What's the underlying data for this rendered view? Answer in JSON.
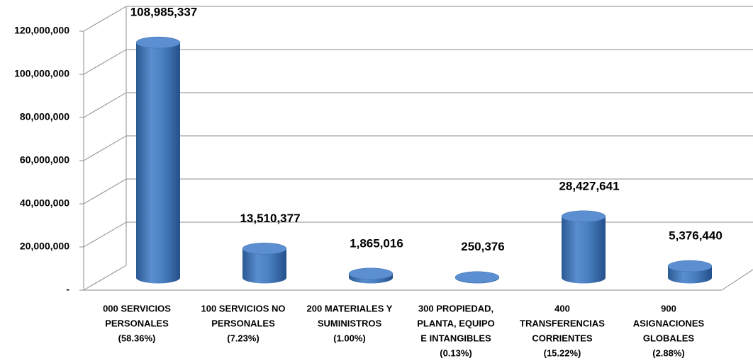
{
  "chart_data": {
    "type": "bar3d",
    "categories": [
      [
        "000 SERVICIOS",
        "PERSONALES",
        "(58.36%)"
      ],
      [
        "100 SERVICIOS NO",
        "PERSONALES",
        "(7.23%)"
      ],
      [
        "200 MATERIALES Y",
        "SUMINISTROS",
        "(1.00%)"
      ],
      [
        "300 PROPIEDAD,",
        "PLANTA, EQUIPO",
        "E INTANGIBLES",
        "(0.13%)"
      ],
      [
        "400",
        "TRANSFERENCIAS",
        "CORRIENTES",
        "(15.22%)"
      ],
      [
        "900",
        "ASIGNACIONES",
        "GLOBALES",
        "(2.88%)"
      ]
    ],
    "values": [
      108985337,
      13510377,
      1865016,
      250376,
      28427641,
      5376440
    ],
    "value_labels": [
      "108,985,337",
      "13,510,377",
      "1,865,016",
      "250,376",
      "28,427,641",
      "5,376,440"
    ],
    "color": "#4f81bd",
    "ylim": [
      0,
      120000000
    ],
    "yticks": [
      {
        "value": 0,
        "label": "-"
      },
      {
        "value": 20000000,
        "label": "20,000,000"
      },
      {
        "value": 40000000,
        "label": "40,000,000"
      },
      {
        "value": 60000000,
        "label": "60,000,000"
      },
      {
        "value": 80000000,
        "label": "80,000,000"
      },
      {
        "value": 100000000,
        "label": "100,000,000"
      },
      {
        "value": 120000000,
        "label": "120,000,000"
      }
    ],
    "grid": true
  }
}
